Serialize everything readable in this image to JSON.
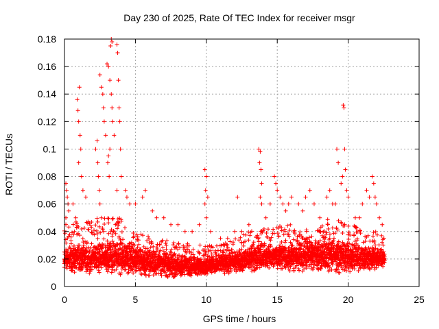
{
  "chart_data": {
    "type": "scatter",
    "title": "Day 230 of 2025, Rate Of TEC Index for receiver msgr",
    "xlabel": "GPS time / hours",
    "ylabel": "ROTI / TECUs",
    "xlim": [
      0,
      25
    ],
    "ylim": [
      0,
      0.18
    ],
    "xticks": [
      0,
      5,
      10,
      15,
      20,
      25
    ],
    "xtick_labels": [
      "0",
      "5",
      "10",
      "15",
      "20",
      "25"
    ],
    "yticks": [
      0,
      0.02,
      0.04,
      0.06,
      0.08,
      0.1,
      0.12,
      0.14,
      0.16,
      0.18
    ],
    "ytick_labels": [
      "0",
      "0.02",
      "0.04",
      "0.06",
      "0.08",
      "0.1",
      "0.12",
      "0.14",
      "0.16",
      "0.18"
    ],
    "grid": true,
    "marker": "+",
    "color": "#ff0000",
    "series": [
      {
        "points": [
          [
            0.1,
            0.075
          ],
          [
            0.15,
            0.07
          ],
          [
            0.2,
            0.065
          ],
          [
            0.25,
            0.06
          ],
          [
            0.3,
            0.055
          ],
          [
            0.1,
            0.05
          ],
          [
            0.6,
            0.06
          ],
          [
            0.8,
            0.05
          ],
          [
            0.9,
            0.136
          ],
          [
            0.95,
            0.128
          ],
          [
            1.0,
            0.12
          ],
          [
            1.05,
            0.145
          ],
          [
            1.1,
            0.11
          ],
          [
            1.0,
            0.09
          ],
          [
            1.15,
            0.1
          ],
          [
            1.2,
            0.08
          ],
          [
            1.3,
            0.07
          ],
          [
            1.5,
            0.065
          ],
          [
            2.2,
            0.1
          ],
          [
            2.3,
            0.106
          ],
          [
            2.35,
            0.09
          ],
          [
            2.4,
            0.08
          ],
          [
            2.45,
            0.07
          ],
          [
            2.5,
            0.154
          ],
          [
            2.6,
            0.145
          ],
          [
            2.7,
            0.14
          ],
          [
            2.75,
            0.13
          ],
          [
            2.8,
            0.12
          ],
          [
            2.9,
            0.11
          ],
          [
            2.5,
            0.06
          ],
          [
            2.6,
            0.05
          ],
          [
            3.0,
            0.162
          ],
          [
            3.1,
            0.16
          ],
          [
            3.2,
            0.15
          ],
          [
            3.3,
            0.14
          ],
          [
            3.35,
            0.13
          ],
          [
            3.4,
            0.12
          ],
          [
            3.5,
            0.11
          ],
          [
            3.2,
            0.1
          ],
          [
            3.1,
            0.095
          ],
          [
            3.05,
            0.09
          ],
          [
            3.15,
            0.08
          ],
          [
            3.25,
            0.175
          ],
          [
            3.3,
            0.18
          ],
          [
            3.35,
            0.178
          ],
          [
            3.7,
            0.176
          ],
          [
            3.75,
            0.17
          ],
          [
            3.8,
            0.15
          ],
          [
            3.85,
            0.13
          ],
          [
            3.9,
            0.12
          ],
          [
            3.95,
            0.1
          ],
          [
            4.0,
            0.08
          ],
          [
            3.7,
            0.07
          ],
          [
            4.3,
            0.07
          ],
          [
            4.4,
            0.065
          ],
          [
            4.6,
            0.06
          ],
          [
            5.0,
            0.06
          ],
          [
            5.5,
            0.065
          ],
          [
            5.7,
            0.07
          ],
          [
            6.2,
            0.055
          ],
          [
            6.5,
            0.05
          ],
          [
            7.0,
            0.05
          ],
          [
            7.5,
            0.045
          ],
          [
            8.0,
            0.045
          ],
          [
            8.5,
            0.04
          ],
          [
            9.0,
            0.04
          ],
          [
            9.5,
            0.045
          ],
          [
            9.9,
            0.085
          ],
          [
            10.0,
            0.08
          ],
          [
            9.95,
            0.07
          ],
          [
            10.1,
            0.065
          ],
          [
            9.9,
            0.06
          ],
          [
            10.0,
            0.05
          ],
          [
            10.3,
            0.04
          ],
          [
            11.0,
            0.035
          ],
          [
            11.5,
            0.035
          ],
          [
            12.0,
            0.04
          ],
          [
            12.2,
            0.065
          ],
          [
            12.5,
            0.04
          ],
          [
            13.0,
            0.045
          ],
          [
            13.7,
            0.1
          ],
          [
            13.8,
            0.098
          ],
          [
            13.75,
            0.09
          ],
          [
            13.85,
            0.085
          ],
          [
            13.9,
            0.075
          ],
          [
            13.8,
            0.065
          ],
          [
            13.9,
            0.06
          ],
          [
            14.2,
            0.05
          ],
          [
            14.5,
            0.06
          ],
          [
            14.8,
            0.08
          ],
          [
            14.9,
            0.075
          ],
          [
            15.0,
            0.07
          ],
          [
            15.2,
            0.065
          ],
          [
            15.4,
            0.06
          ],
          [
            15.6,
            0.055
          ],
          [
            15.8,
            0.06
          ],
          [
            16.0,
            0.065
          ],
          [
            16.5,
            0.06
          ],
          [
            16.8,
            0.055
          ],
          [
            17.0,
            0.065
          ],
          [
            17.3,
            0.07
          ],
          [
            17.6,
            0.06
          ],
          [
            18.0,
            0.05
          ],
          [
            18.5,
            0.065
          ],
          [
            18.7,
            0.07
          ],
          [
            18.9,
            0.06
          ],
          [
            19.1,
            0.06
          ],
          [
            19.2,
            0.1
          ],
          [
            19.3,
            0.09
          ],
          [
            19.5,
            0.075
          ],
          [
            19.6,
            0.08
          ],
          [
            19.65,
            0.132
          ],
          [
            19.7,
            0.13
          ],
          [
            19.75,
            0.1
          ],
          [
            19.8,
            0.085
          ],
          [
            19.9,
            0.07
          ],
          [
            20.0,
            0.065
          ],
          [
            20.5,
            0.05
          ],
          [
            20.8,
            0.05
          ],
          [
            21.0,
            0.06
          ],
          [
            21.3,
            0.07
          ],
          [
            21.5,
            0.065
          ],
          [
            21.7,
            0.08
          ],
          [
            21.8,
            0.075
          ],
          [
            21.9,
            0.065
          ],
          [
            22.0,
            0.06
          ],
          [
            22.2,
            0.05
          ],
          [
            22.4,
            0.045
          ]
        ],
        "band": {
          "x_start": 0.0,
          "x_end": 22.6,
          "x_step": 0.05,
          "floor": [
            [
              0,
              0.01
            ],
            [
              5,
              0.008
            ],
            [
              8,
              0.006
            ],
            [
              10,
              0.008
            ],
            [
              12,
              0.01
            ],
            [
              15,
              0.012
            ],
            [
              18,
              0.01
            ],
            [
              20,
              0.01
            ],
            [
              22.6,
              0.012
            ]
          ],
          "ceiling": [
            [
              0,
              0.045
            ],
            [
              2,
              0.05
            ],
            [
              4,
              0.05
            ],
            [
              5,
              0.04
            ],
            [
              7,
              0.035
            ],
            [
              8,
              0.032
            ],
            [
              10,
              0.03
            ],
            [
              11,
              0.03
            ],
            [
              12,
              0.035
            ],
            [
              13,
              0.04
            ],
            [
              15,
              0.045
            ],
            [
              17,
              0.045
            ],
            [
              19,
              0.05
            ],
            [
              20,
              0.045
            ],
            [
              22,
              0.04
            ],
            [
              22.6,
              0.035
            ]
          ],
          "core": [
            [
              0,
              0.02
            ],
            [
              4,
              0.022
            ],
            [
              6,
              0.018
            ],
            [
              8,
              0.015
            ],
            [
              10,
              0.015
            ],
            [
              12,
              0.018
            ],
            [
              14,
              0.022
            ],
            [
              16,
              0.022
            ],
            [
              18,
              0.023
            ],
            [
              20,
              0.022
            ],
            [
              22.6,
              0.02
            ]
          ]
        }
      }
    ]
  }
}
